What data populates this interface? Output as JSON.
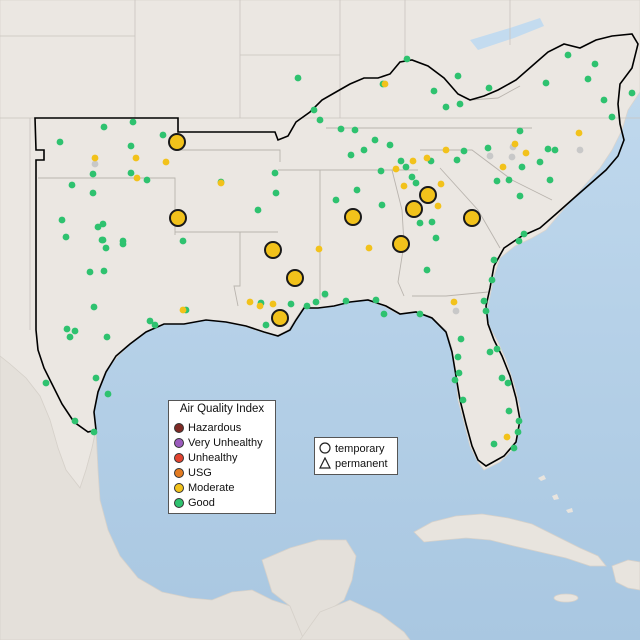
{
  "legend": {
    "title": "Air Quality Index",
    "items": [
      {
        "label": "Hazardous",
        "color": "#7e2a24"
      },
      {
        "label": "Very Unhealthy",
        "color": "#9b5bbd"
      },
      {
        "label": "Unhealthy",
        "color": "#e2432f"
      },
      {
        "label": "USG",
        "color": "#e37b21"
      },
      {
        "label": "Moderate",
        "color": "#f2c21b"
      },
      {
        "label": "Good",
        "color": "#2ec26f"
      }
    ]
  },
  "shape_legend": {
    "items": [
      {
        "label": "temporary",
        "icon": "circle-outline-icon"
      },
      {
        "label": "permanent",
        "icon": "triangle-outline-icon"
      }
    ]
  },
  "colors": {
    "water": "#b9d3e8",
    "land": "#ebe7e2",
    "nodata": "#c8c8c8"
  }
}
